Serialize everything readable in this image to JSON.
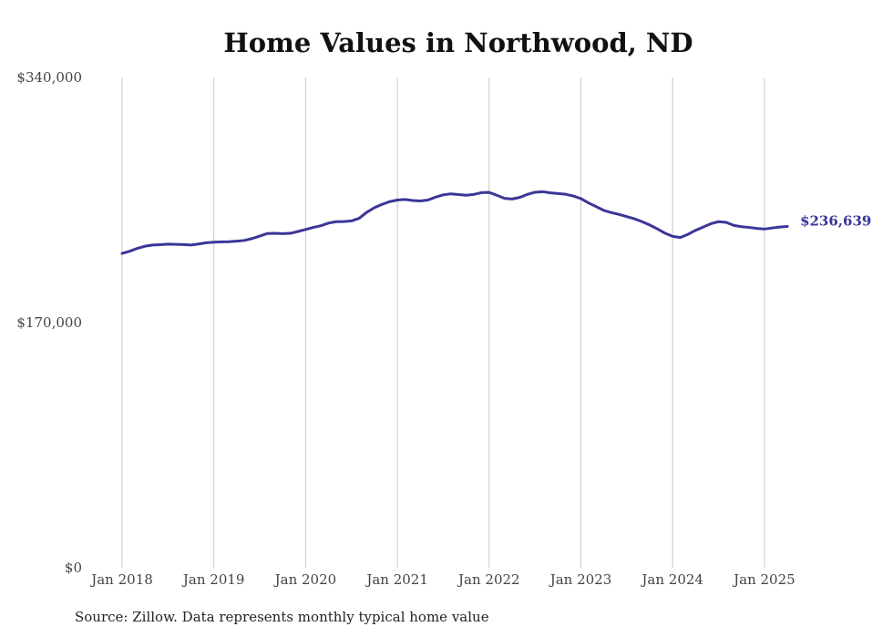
{
  "chart_data": {
    "type": "line",
    "title": "Home Values in Northwood, ND",
    "source": "Source: Zillow. Data represents monthly typical home value",
    "xlabel": "",
    "ylabel": "",
    "ylim": [
      0,
      340000
    ],
    "y_ticks": [
      0,
      170000,
      340000
    ],
    "y_tick_labels": [
      "$0",
      "$170,000",
      "$340,000"
    ],
    "x_ticks": [
      "2018-01",
      "2019-01",
      "2020-01",
      "2021-01",
      "2022-01",
      "2023-01",
      "2024-01",
      "2025-01"
    ],
    "x_tick_labels": [
      "Jan 2018",
      "Jan 2019",
      "Jan 2020",
      "Jan 2021",
      "Jan 2022",
      "Jan 2023",
      "Jan 2024",
      "Jan 2025"
    ],
    "grid": "vertical",
    "line_color": "#3b3699",
    "end_label": "$236,639",
    "series": [
      {
        "x": [
          "2018-01",
          "2018-02",
          "2018-03",
          "2018-04",
          "2018-05",
          "2018-06",
          "2018-07",
          "2018-08",
          "2018-09",
          "2018-10",
          "2018-11",
          "2018-12",
          "2019-01",
          "2019-02",
          "2019-03",
          "2019-04",
          "2019-05",
          "2019-06",
          "2019-07",
          "2019-08",
          "2019-09",
          "2019-10",
          "2019-11",
          "2019-12",
          "2020-01",
          "2020-02",
          "2020-03",
          "2020-04",
          "2020-05",
          "2020-06",
          "2020-07",
          "2020-08",
          "2020-09",
          "2020-10",
          "2020-11",
          "2020-12",
          "2021-01",
          "2021-02",
          "2021-03",
          "2021-04",
          "2021-05",
          "2021-06",
          "2021-07",
          "2021-08",
          "2021-09",
          "2021-10",
          "2021-11",
          "2021-12",
          "2022-01",
          "2022-02",
          "2022-03",
          "2022-04",
          "2022-05",
          "2022-06",
          "2022-07",
          "2022-08",
          "2022-09",
          "2022-10",
          "2022-11",
          "2022-12",
          "2023-01",
          "2023-02",
          "2023-03",
          "2023-04",
          "2023-05",
          "2023-06",
          "2023-07",
          "2023-08",
          "2023-09",
          "2023-10",
          "2023-11",
          "2023-12",
          "2024-01",
          "2024-02",
          "2024-03",
          "2024-04",
          "2024-05",
          "2024-06",
          "2024-07",
          "2024-08",
          "2024-09",
          "2024-10",
          "2024-11",
          "2024-12",
          "2025-01",
          "2025-02",
          "2025-03",
          "2025-04"
        ],
        "values": [
          218000,
          219500,
          221500,
          223000,
          223800,
          224000,
          224400,
          224300,
          224100,
          223800,
          224500,
          225400,
          225800,
          226000,
          226100,
          226500,
          227000,
          228300,
          230000,
          231800,
          231900,
          231700,
          231900,
          233200,
          234600,
          236000,
          237200,
          239000,
          240000,
          240100,
          240500,
          242300,
          246500,
          249700,
          252000,
          253900,
          255000,
          255400,
          254700,
          254400,
          255000,
          257000,
          258600,
          259300,
          258800,
          258300,
          258900,
          260100,
          260300,
          258300,
          256200,
          255700,
          256800,
          258900,
          260400,
          260800,
          260000,
          259500,
          259000,
          257800,
          256000,
          253000,
          250400,
          247800,
          246300,
          245000,
          243500,
          242000,
          240000,
          237700,
          235000,
          232000,
          229800,
          229000,
          231200,
          234000,
          236300,
          238600,
          240000,
          239500,
          237400,
          236500,
          236000,
          235300,
          234900,
          235600,
          236300,
          236639
        ]
      }
    ]
  }
}
